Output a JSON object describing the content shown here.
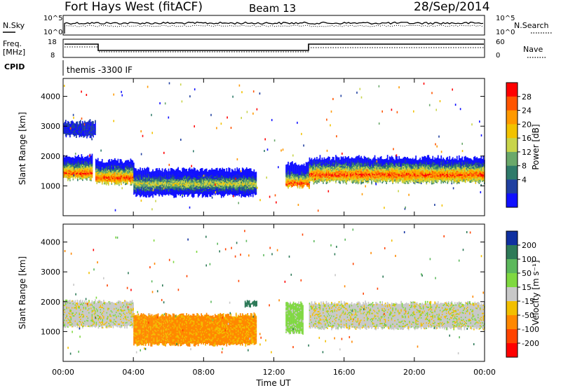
{
  "header": {
    "title": "Fort Hays West (fitACF)",
    "beam": "Beam 13",
    "date": "28/Sep/2014"
  },
  "top_panels": {
    "nsky_label": "N.Sky",
    "nsearch_label": "N.Search",
    "noise_ticks_left": [
      "10^5",
      "10^0"
    ],
    "noise_ticks_right": [
      "10^5",
      "10^0"
    ],
    "freq_label_1": "Freq.",
    "freq_label_2": "[MHz]",
    "freq_ticks": [
      "18",
      "8"
    ],
    "nave_label": "Nave",
    "nave_ticks": [
      "60",
      "0"
    ],
    "cpid_label": "CPID",
    "cpid_text": "themis -3300 IF"
  },
  "power_colorbar": {
    "label": "Power [dB]",
    "ticks": [
      "28",
      "24",
      "20",
      "16",
      "12",
      "8",
      "4"
    ],
    "colors": [
      "#ff0000",
      "#ff5500",
      "#ff9900",
      "#f2c200",
      "#c8d44a",
      "#6aa86a",
      "#2f7a6a",
      "#2040a0",
      "#1010ff"
    ]
  },
  "velocity_colorbar": {
    "label": "Velocity [m s⁻¹]",
    "ticks": [
      "200",
      "100",
      "50",
      "15",
      "-15",
      "-50",
      "-100",
      "-200"
    ],
    "colors": [
      "#1030a0",
      "#2e7a58",
      "#5cb85c",
      "#7fd840",
      "#c8c8c8",
      "#f2bf00",
      "#ff8800",
      "#ff4400",
      "#ff0000"
    ]
  },
  "chart_data": [
    {
      "type": "heatmap",
      "title": "Power",
      "xlabel": "",
      "ylabel": "Slant Range [km]",
      "xlim": [
        "00:00",
        "24:00"
      ],
      "ylim": [
        0,
        4600
      ],
      "yticks": [
        "4000",
        "3000",
        "2000",
        "1000"
      ],
      "colorbar": "Power [dB]",
      "bands": [
        {
          "t": [
            "00:00",
            "01:40"
          ],
          "range_km": [
            1150,
            2050
          ],
          "peak_km": 1400,
          "power_db": 24
        },
        {
          "t": [
            "00:00",
            "01:50"
          ],
          "range_km": [
            2600,
            3200
          ],
          "power_db": 6
        },
        {
          "t": [
            "01:50",
            "04:00"
          ],
          "range_km": [
            1000,
            1900
          ],
          "peak_km": 1250,
          "power_db": 24
        },
        {
          "t": [
            "04:00",
            "11:00"
          ],
          "range_km": [
            600,
            1600
          ],
          "peak_km": 1050,
          "power_db": 14
        },
        {
          "t": [
            "12:40",
            "14:00"
          ],
          "range_km": [
            900,
            1800
          ],
          "peak_km": 1050,
          "power_db": 24
        },
        {
          "t": [
            "14:00",
            "24:00"
          ],
          "range_km": [
            1050,
            2000
          ],
          "peak_km": 1350,
          "power_db": 22
        }
      ]
    },
    {
      "type": "heatmap",
      "title": "Velocity",
      "xlabel": "Time UT",
      "ylabel": "Slant Range [km]",
      "xlim": [
        "00:00",
        "24:00"
      ],
      "ylim": [
        0,
        4600
      ],
      "xticks": [
        "00:00",
        "04:00",
        "08:00",
        "12:00",
        "16:00",
        "20:00",
        "00:00"
      ],
      "yticks": [
        "4000",
        "3000",
        "2000",
        "1000"
      ],
      "colorbar": "Velocity [m s⁻¹]",
      "bands": [
        {
          "t": [
            "00:00",
            "04:00"
          ],
          "range_km": [
            1100,
            2050
          ],
          "velocity_ms": 0
        },
        {
          "t": [
            "04:00",
            "11:00"
          ],
          "range_km": [
            500,
            1600
          ],
          "velocity_ms": -60
        },
        {
          "t": [
            "10:20",
            "11:00"
          ],
          "range_km": [
            1800,
            2050
          ],
          "velocity_ms": 150
        },
        {
          "t": [
            "12:40",
            "13:40"
          ],
          "range_km": [
            900,
            2000
          ],
          "velocity_ms": 30
        },
        {
          "t": [
            "14:00",
            "24:00"
          ],
          "range_km": [
            1050,
            2000
          ],
          "velocity_ms": 0
        }
      ]
    }
  ]
}
